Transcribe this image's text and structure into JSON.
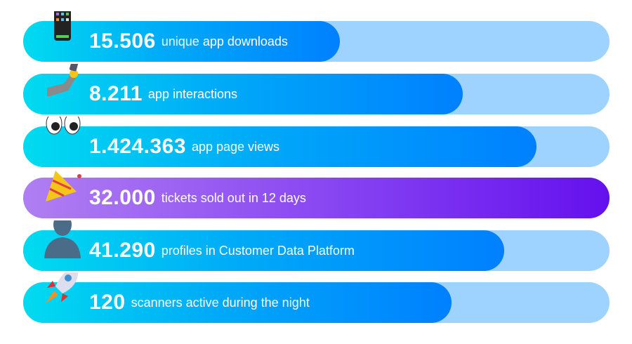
{
  "colors": {
    "track": "#9fd3ff",
    "blue_start": "#00dbf0",
    "blue_end": "#0080ff",
    "purple_start": "#b07ff2",
    "purple_end": "#6410ee"
  },
  "stats": [
    {
      "value": "15.506",
      "label": "unique app downloads",
      "icon": "mobile-phone-icon",
      "fill_fraction": 0.54
    },
    {
      "value": "8.211",
      "label": "app interactions",
      "icon": "selfie-arm-icon",
      "fill_fraction": 0.75
    },
    {
      "value": "1.424.363",
      "label": "app page views",
      "icon": "eyes-icon",
      "fill_fraction": 0.875
    },
    {
      "value": "32.000",
      "label": "tickets sold out in 12 days",
      "icon": "party-popper-icon",
      "fill_fraction": 1.0
    },
    {
      "value": "41.290",
      "label": "profiles in Customer Data Platform",
      "icon": "bust-silhouette-icon",
      "fill_fraction": 0.82
    },
    {
      "value": "120",
      "label": "scanners active during the night",
      "icon": "rocket-icon",
      "fill_fraction": 0.73
    }
  ]
}
